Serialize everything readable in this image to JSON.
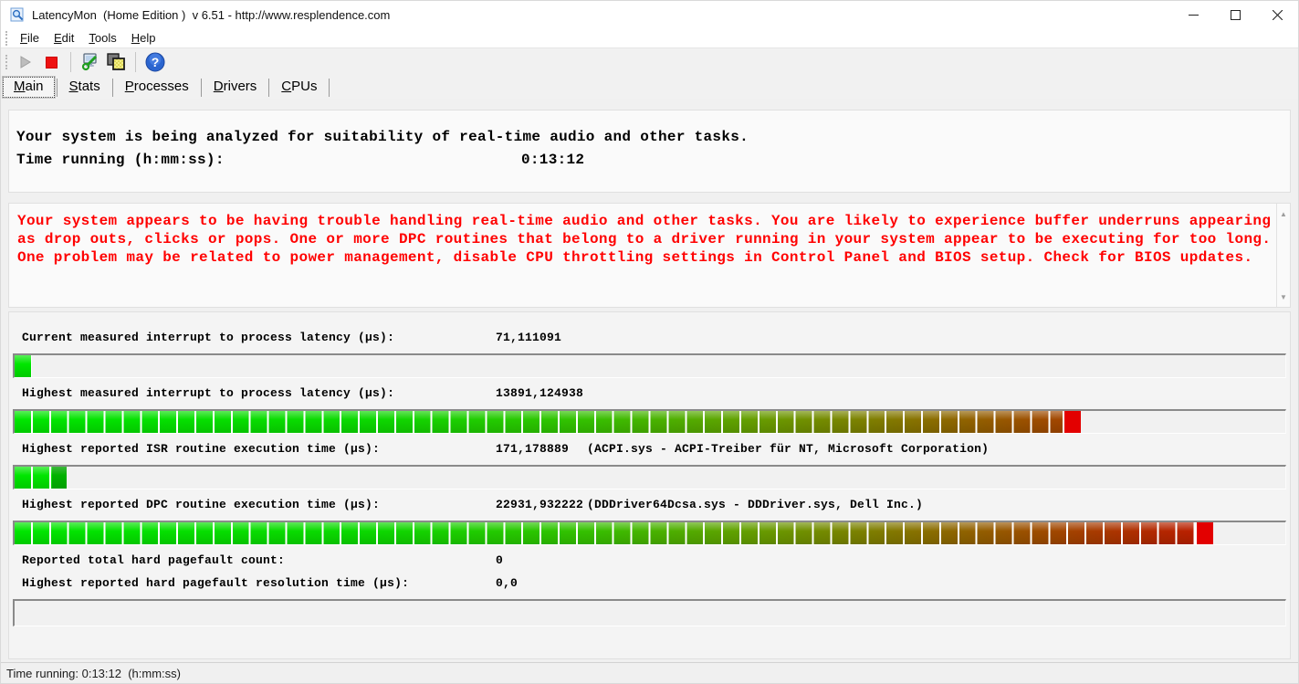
{
  "window": {
    "title": "LatencyMon  (Home Edition )  v 6.51 - http://www.resplendence.com"
  },
  "menu": {
    "items": [
      {
        "label": "File"
      },
      {
        "label": "Edit"
      },
      {
        "label": "Tools"
      },
      {
        "label": "Help"
      }
    ]
  },
  "toolbar": {
    "buttons": [
      {
        "icon": "start-icon",
        "enabled": false
      },
      {
        "icon": "stop-icon",
        "enabled": true
      },
      {
        "icon": "options-icon",
        "enabled": true
      },
      {
        "icon": "copy-report-icon",
        "enabled": true
      },
      {
        "icon": "help-icon",
        "enabled": true
      }
    ]
  },
  "tabs": {
    "selected": "Main",
    "items": [
      {
        "label": "Main"
      },
      {
        "label": "Stats"
      },
      {
        "label": "Processes"
      },
      {
        "label": "Drivers"
      },
      {
        "label": "CPUs"
      }
    ]
  },
  "analysis": {
    "headline": "Your system is being analyzed for suitability of real-time audio and other tasks.",
    "time_label": "Time running (h:mm:ss):",
    "time_value": "0:13:12"
  },
  "warning": {
    "text_color": "#ff0000",
    "lines": [
      "Your system appears to be having trouble handling real-time audio and other tasks. You are likely to experience buffer underruns appearing",
      "as drop outs, clicks or pops. One or more DPC routines that belong to a driver running in your system appear to be executing for too long.",
      "One problem may be related to power management, disable CPU throttling settings in Control Panel and BIOS setup. Check for BIOS updates."
    ]
  },
  "measurements": {
    "bar_green": "#00e600",
    "bar_red": "#cb0c00",
    "rows": [
      {
        "label": "Current measured interrupt to process latency (µs):",
        "value": "71,111091",
        "detail": "",
        "bar_percent": 1.4
      },
      {
        "label": "Highest measured interrupt to process latency (µs):",
        "value": "13891,124938",
        "detail": "",
        "bar_percent": 83.9
      },
      {
        "label": "Highest reported ISR routine execution time (µs):",
        "value": "171,178889",
        "detail": "(ACPI.sys - ACPI-Treiber für NT, Microsoft Corporation)",
        "bar_percent": 4.1
      },
      {
        "label": "Highest reported DPC routine execution time (µs):",
        "value": "22931,932222",
        "detail": "(DDDriver64Dcsa.sys - DDDriver.sys, Dell Inc.)",
        "bar_percent": 94.3
      },
      {
        "label": "Reported total hard pagefault count:",
        "value": "0",
        "detail": ""
      },
      {
        "label": "Highest reported hard pagefault resolution time (µs):",
        "value": "0,0",
        "detail": ""
      }
    ],
    "empty_bar_percent": 0
  },
  "statusbar": {
    "text": "Time running: 0:13:12  (h:mm:ss)"
  }
}
